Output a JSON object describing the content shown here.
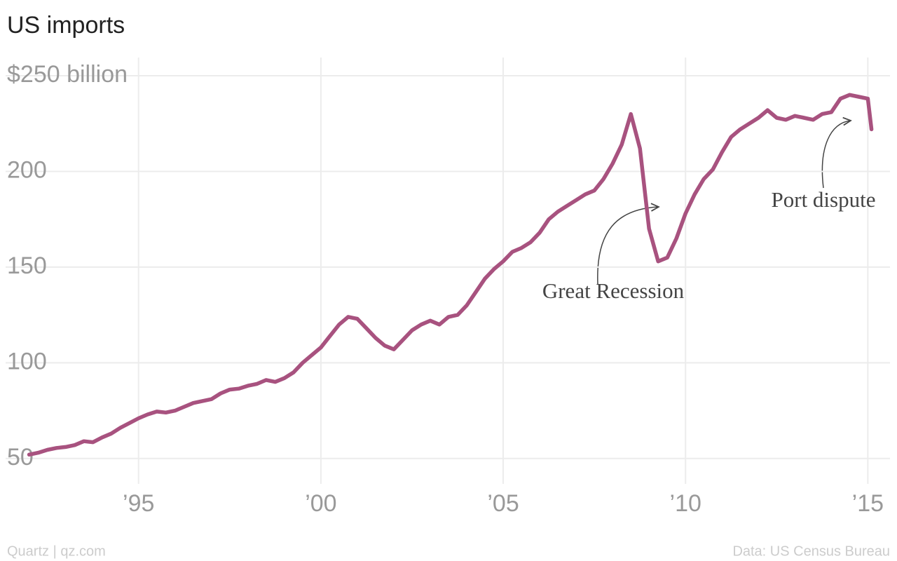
{
  "chart_data": {
    "type": "line",
    "title": "US imports",
    "x": [
      1992,
      1992.25,
      1992.5,
      1992.75,
      1993,
      1993.25,
      1993.5,
      1993.75,
      1994,
      1994.25,
      1994.5,
      1994.75,
      1995,
      1995.25,
      1995.5,
      1995.75,
      1996,
      1996.25,
      1996.5,
      1996.75,
      1997,
      1997.25,
      1997.5,
      1997.75,
      1998,
      1998.25,
      1998.5,
      1998.75,
      1999,
      1999.25,
      1999.5,
      1999.75,
      2000,
      2000.25,
      2000.5,
      2000.75,
      2001,
      2001.25,
      2001.5,
      2001.75,
      2002,
      2002.25,
      2002.5,
      2002.75,
      2003,
      2003.25,
      2003.5,
      2003.75,
      2004,
      2004.25,
      2004.5,
      2004.75,
      2005,
      2005.25,
      2005.5,
      2005.75,
      2006,
      2006.25,
      2006.5,
      2006.75,
      2007,
      2007.25,
      2007.5,
      2007.75,
      2008,
      2008.25,
      2008.5,
      2008.75,
      2009,
      2009.25,
      2009.5,
      2009.75,
      2010,
      2010.25,
      2010.5,
      2010.75,
      2011,
      2011.25,
      2011.5,
      2011.75,
      2012,
      2012.25,
      2012.5,
      2012.75,
      2013,
      2013.25,
      2013.5,
      2013.75,
      2014,
      2014.25,
      2014.5,
      2014.75,
      2015,
      2015.1
    ],
    "values": [
      52,
      53,
      54.5,
      55.5,
      56,
      57,
      59,
      58.5,
      61,
      63,
      66,
      68.5,
      71,
      73,
      74.5,
      74,
      75,
      77,
      79,
      80,
      81,
      84,
      86,
      86.5,
      88,
      89,
      91,
      90,
      92,
      95,
      100,
      104,
      108,
      114,
      120,
      124,
      123,
      118,
      113,
      109,
      107,
      112,
      117,
      120,
      122,
      120,
      124,
      125,
      130,
      137,
      144,
      149,
      153,
      158,
      160,
      163,
      168,
      175,
      179,
      182,
      185,
      188,
      190,
      196,
      204,
      214,
      230,
      212,
      170,
      153,
      155,
      165,
      178,
      188,
      196,
      201,
      210,
      218,
      222,
      225,
      228,
      232,
      228,
      227,
      229,
      228,
      227,
      230,
      231,
      238,
      240,
      239,
      238,
      222
    ],
    "color": "#a8527f",
    "xlim": [
      1991.2,
      2015.8
    ],
    "xticks": [
      {
        "value": 1995,
        "label": "’95"
      },
      {
        "value": 2000,
        "label": "’00"
      },
      {
        "value": 2005,
        "label": "’05"
      },
      {
        "value": 2010,
        "label": "’10"
      },
      {
        "value": 2015,
        "label": "’15"
      }
    ],
    "ylim": [
      36,
      250
    ],
    "yticks": [
      50,
      100,
      150,
      200,
      {
        "value": 250,
        "label": "$250 billion"
      }
    ],
    "grid": true,
    "annotations": [
      "Great Recession",
      "Port dispute"
    ],
    "credit": "Quartz | qz.com",
    "source": "Data: US Census Bureau"
  }
}
